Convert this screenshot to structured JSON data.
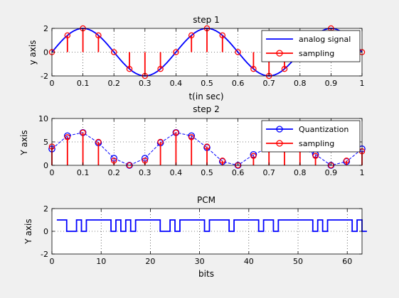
{
  "figure": {
    "background": "#f0f0f0"
  },
  "chart_data": [
    {
      "type": "line",
      "title": "step 1",
      "xlabel": "t(in sec)",
      "ylabel": "y axis",
      "xlim": [
        0,
        1
      ],
      "ylim": [
        -2,
        2
      ],
      "xticks": [
        0,
        0.1,
        0.2,
        0.3,
        0.4,
        0.5,
        0.6,
        0.7,
        0.8,
        0.9,
        1
      ],
      "xtick_labels": [
        "0",
        "0.1",
        "0.2",
        "0.3",
        "0.4",
        "0.5",
        "0.6",
        "0.7",
        "0.8",
        "0.9",
        "1"
      ],
      "yticks": [
        -2,
        0,
        2
      ],
      "ytick_labels": [
        "-2",
        "0",
        "2"
      ],
      "grid": true,
      "legend_position": "top-right",
      "series": [
        {
          "name": "analog signal",
          "style": "line",
          "color": "#0000ff",
          "x": [
            0,
            0.01,
            0.02,
            0.03,
            0.04,
            0.05,
            0.06,
            0.07,
            0.08,
            0.09,
            0.1,
            0.11,
            0.12,
            0.13,
            0.14,
            0.15,
            0.16,
            0.17,
            0.18,
            0.19,
            0.2,
            0.21,
            0.22,
            0.23,
            0.24,
            0.25,
            0.26,
            0.27,
            0.28,
            0.29,
            0.3,
            0.31,
            0.32,
            0.33,
            0.34,
            0.35,
            0.36,
            0.37,
            0.38,
            0.39,
            0.4,
            0.41,
            0.42,
            0.43,
            0.44,
            0.45,
            0.46,
            0.47,
            0.48,
            0.49,
            0.5,
            0.51,
            0.52,
            0.53,
            0.54,
            0.55,
            0.56,
            0.57,
            0.58,
            0.59,
            0.6,
            0.61,
            0.62,
            0.63,
            0.64,
            0.65,
            0.66,
            0.67,
            0.68,
            0.69,
            0.7,
            0.71,
            0.72,
            0.73,
            0.74,
            0.75,
            0.76,
            0.77,
            0.78,
            0.79,
            0.8,
            0.81,
            0.82,
            0.83,
            0.84,
            0.85,
            0.86,
            0.87,
            0.88,
            0.89,
            0.9,
            0.91,
            0.92,
            0.93,
            0.94,
            0.95,
            0.96,
            0.97,
            0.98,
            0.99,
            1
          ],
          "y": [
            0,
            0.31,
            0.62,
            0.91,
            1.18,
            1.41,
            1.62,
            1.78,
            1.9,
            1.98,
            2,
            1.98,
            1.9,
            1.78,
            1.62,
            1.41,
            1.18,
            0.91,
            0.62,
            0.31,
            0,
            -0.31,
            -0.62,
            -0.91,
            -1.18,
            -1.41,
            -1.62,
            -1.78,
            -1.9,
            -1.98,
            -2,
            -1.98,
            -1.9,
            -1.78,
            -1.62,
            -1.41,
            -1.18,
            -0.91,
            -0.62,
            -0.31,
            0,
            0.31,
            0.62,
            0.91,
            1.18,
            1.41,
            1.62,
            1.78,
            1.9,
            1.98,
            2,
            1.98,
            1.9,
            1.78,
            1.62,
            1.41,
            1.18,
            0.91,
            0.62,
            0.31,
            0,
            -0.31,
            -0.62,
            -0.91,
            -1.18,
            -1.41,
            -1.62,
            -1.78,
            -1.9,
            -1.98,
            -2,
            -1.98,
            -1.9,
            -1.78,
            -1.62,
            -1.41,
            -1.18,
            -0.91,
            -0.62,
            -0.31,
            0,
            0.31,
            0.62,
            0.91,
            1.18,
            1.41,
            1.62,
            1.78,
            1.9,
            1.98,
            2,
            1.98,
            1.9,
            1.78,
            1.62,
            1.41,
            1.18,
            0.91,
            0.62,
            0.31,
            0
          ]
        },
        {
          "name": "sampling",
          "style": "stem",
          "color": "#ff0000",
          "x": [
            0,
            0.05,
            0.1,
            0.15,
            0.2,
            0.25,
            0.3,
            0.35,
            0.4,
            0.45,
            0.5,
            0.55,
            0.6,
            0.65,
            0.7,
            0.75,
            0.8,
            0.85,
            0.9,
            0.95,
            1
          ],
          "y": [
            0,
            1.41,
            2,
            1.41,
            0,
            -1.41,
            -2,
            -1.41,
            0,
            1.41,
            2,
            1.41,
            0,
            -1.41,
            -2,
            -1.41,
            0,
            1.41,
            2,
            1.41,
            0
          ]
        }
      ]
    },
    {
      "type": "line",
      "title": "step 2",
      "xlabel": "",
      "ylabel": "Y axis",
      "xlim": [
        0,
        1
      ],
      "ylim": [
        0,
        10
      ],
      "xticks": [
        0,
        0.1,
        0.2,
        0.3,
        0.4,
        0.5,
        0.6,
        0.7,
        0.8,
        0.9,
        1
      ],
      "xtick_labels": [
        "0",
        "0.1",
        "0.2",
        "0.3",
        "0.4",
        "0.5",
        "0.6",
        "0.7",
        "0.8",
        "0.9",
        "1"
      ],
      "yticks": [
        0,
        5,
        10
      ],
      "ytick_labels": [
        "0",
        "5",
        "10"
      ],
      "grid": true,
      "legend_position": "top-right",
      "series": [
        {
          "name": "Quantization",
          "style": "stem-dashed",
          "color": "#0000ff",
          "x": [
            0,
            0.05,
            0.1,
            0.15,
            0.2,
            0.25,
            0.3,
            0.35,
            0.4,
            0.45,
            0.5,
            0.55,
            0.6,
            0.65,
            0.7,
            0.75,
            0.8,
            0.85,
            0.9,
            0.95,
            1
          ],
          "y": [
            3.5,
            6.3,
            7,
            4.8,
            1.5,
            0,
            1.5,
            4.8,
            7,
            6.3,
            3.8,
            0.8,
            0,
            2.3,
            3.8,
            3.8,
            3.8,
            2.3,
            0,
            0.8,
            3.5
          ]
        },
        {
          "name": "sampling",
          "style": "stem",
          "color": "#ff0000",
          "x": [
            0,
            0.05,
            0.1,
            0.15,
            0.2,
            0.25,
            0.3,
            0.35,
            0.4,
            0.45,
            0.5,
            0.55,
            0.6,
            0.65,
            0.7,
            0.75,
            0.8,
            0.85,
            0.9,
            0.95,
            1
          ],
          "y": [
            4,
            6,
            7,
            5,
            1,
            0,
            1,
            5,
            7,
            6,
            4,
            1,
            0,
            2,
            4,
            4,
            4,
            2,
            0,
            1,
            3
          ]
        }
      ]
    },
    {
      "type": "line",
      "title": "PCM",
      "xlabel": "bits",
      "ylabel": "Y axis",
      "xlim": [
        0,
        63
      ],
      "ylim": [
        -2,
        2
      ],
      "xticks": [
        0,
        10,
        20,
        30,
        40,
        50,
        60
      ],
      "xtick_labels": [
        "0",
        "10",
        "20",
        "30",
        "40",
        "50",
        "60"
      ],
      "yticks": [
        -2,
        0,
        2
      ],
      "ytick_labels": [
        "-2",
        "0",
        "2"
      ],
      "grid": true,
      "legend_position": "none",
      "series": [
        {
          "style": "step",
          "color": "#0000ff",
          "x": [
            1,
            2,
            3,
            4,
            5,
            6,
            7,
            8,
            9,
            10,
            11,
            12,
            13,
            14,
            15,
            16,
            17,
            18,
            19,
            20,
            21,
            22,
            23,
            24,
            25,
            26,
            27,
            28,
            29,
            30,
            31,
            32,
            33,
            34,
            35,
            36,
            37,
            38,
            39,
            40,
            41,
            42,
            43,
            44,
            45,
            46,
            47,
            48,
            49,
            50,
            51,
            52,
            53,
            54,
            55,
            56,
            57,
            58,
            59,
            60,
            61,
            62,
            63
          ],
          "y": [
            1,
            1,
            0,
            0,
            1,
            0,
            1,
            1,
            1,
            1,
            1,
            0,
            1,
            0,
            1,
            0,
            1,
            1,
            1,
            1,
            1,
            0,
            0,
            1,
            0,
            1,
            1,
            1,
            1,
            1,
            0,
            1,
            1,
            1,
            1,
            0,
            1,
            1,
            1,
            1,
            1,
            0,
            1,
            1,
            0,
            1,
            1,
            1,
            1,
            1,
            1,
            1,
            0,
            1,
            0,
            1,
            1,
            1,
            1,
            1,
            0,
            1,
            0
          ]
        }
      ]
    }
  ]
}
